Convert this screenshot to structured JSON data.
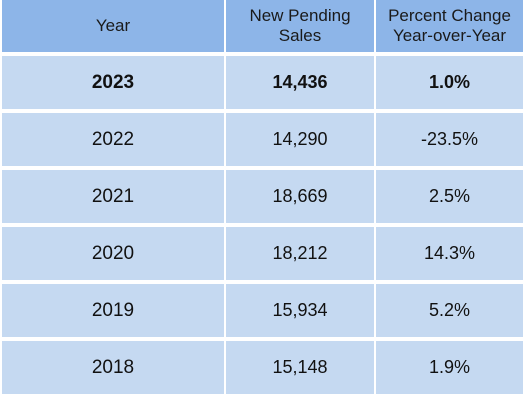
{
  "chart_data": {
    "type": "table",
    "columns": [
      "Year",
      "New Pending Sales",
      "Percent Change Year-over-Year"
    ],
    "header": {
      "year": "Year",
      "sales": "New Pending Sales",
      "change_line1": "Percent Change",
      "change_line2": "Year-over-Year"
    },
    "rows": [
      {
        "year": "2023",
        "sales": "14,436",
        "change": "1.0%"
      },
      {
        "year": "2022",
        "sales": "14,290",
        "change": "-23.5%"
      },
      {
        "year": "2021",
        "sales": "18,669",
        "change": "2.5%"
      },
      {
        "year": "2020",
        "sales": "18,212",
        "change": "14.3%"
      },
      {
        "year": "2019",
        "sales": "15,934",
        "change": "5.2%"
      },
      {
        "year": "2018",
        "sales": "15,148",
        "change": "1.9%"
      }
    ],
    "highlight_row": 0,
    "colors": {
      "header_bg": "#8db5e8",
      "row_bg": "#c5d9f1"
    }
  }
}
